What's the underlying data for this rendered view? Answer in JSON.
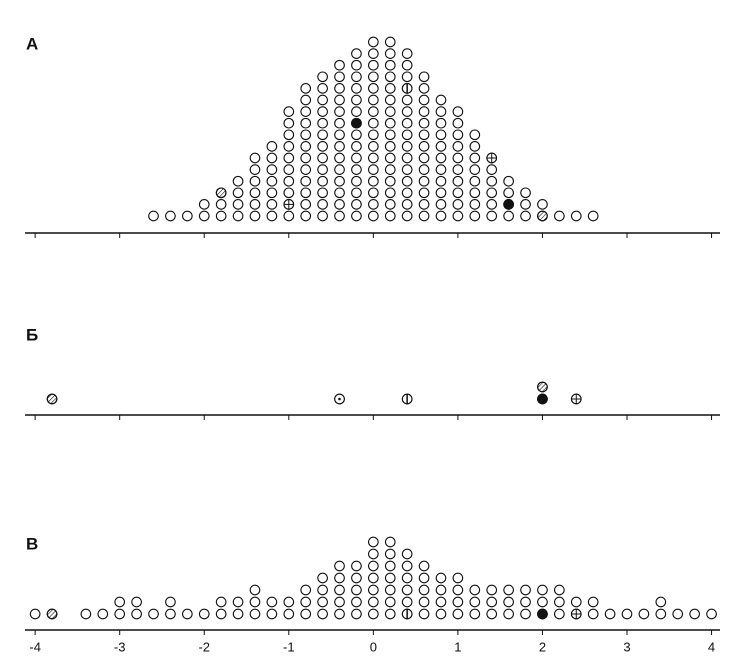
{
  "chart_data": {
    "type": "dotplot",
    "xlim": [
      -4.12,
      4.1
    ],
    "xticks": [
      -4,
      -3,
      -2,
      -1,
      0,
      1,
      2,
      3,
      4
    ],
    "panels": [
      {
        "label": "А",
        "x": [
          -2.6,
          -2.4,
          -2.2,
          -2.0,
          -1.8,
          -1.6,
          -1.4,
          -1.2,
          -1.0,
          -0.8,
          -0.6,
          -0.4,
          -0.2,
          0,
          0.2,
          0.4,
          0.6,
          0.8,
          1.0,
          1.2,
          1.4,
          1.6,
          1.8,
          2.0,
          2.2,
          2.4,
          2.6
        ],
        "counts": [
          1,
          1,
          1,
          2,
          3,
          4,
          6,
          7,
          10,
          12,
          13,
          14,
          15,
          16,
          16,
          15,
          13,
          11,
          10,
          8,
          6,
          4,
          3,
          2,
          1,
          1,
          1
        ],
        "marked": [
          {
            "x": -0.2,
            "level": 8,
            "marker": "filled"
          },
          {
            "x": 1.6,
            "level": 1,
            "marker": "filled"
          },
          {
            "x": 1.4,
            "level": 5,
            "marker": "crossed"
          },
          {
            "x": -1.0,
            "level": 1,
            "marker": "crossed"
          },
          {
            "x": -1.8,
            "level": 2,
            "marker": "hatched"
          },
          {
            "x": 2.0,
            "level": 0,
            "marker": "hatched"
          },
          {
            "x": 0.4,
            "level": 11,
            "marker": "vline"
          }
        ]
      },
      {
        "label": "Б",
        "x": [
          -3.8,
          -0.4,
          0.4,
          2.0,
          2.4
        ],
        "counts": [
          1,
          1,
          1,
          2,
          1
        ],
        "marked": [
          {
            "x": -3.8,
            "level": 0,
            "marker": "hatched"
          },
          {
            "x": -0.4,
            "level": 0,
            "marker": "dotted"
          },
          {
            "x": 0.4,
            "level": 0,
            "marker": "vline"
          },
          {
            "x": 2.0,
            "level": 0,
            "marker": "filled"
          },
          {
            "x": 2.0,
            "level": 1,
            "marker": "hatched"
          },
          {
            "x": 2.4,
            "level": 0,
            "marker": "crossed"
          }
        ]
      },
      {
        "label": "В",
        "x": [
          -4.0,
          -3.8,
          -3.4,
          -3.2,
          -3.0,
          -2.8,
          -2.6,
          -2.4,
          -2.2,
          -2.0,
          -1.8,
          -1.6,
          -1.4,
          -1.2,
          -1.0,
          -0.8,
          -0.6,
          -0.4,
          -0.2,
          0,
          0.2,
          0.4,
          0.6,
          0.8,
          1.0,
          1.2,
          1.4,
          1.6,
          1.8,
          2.0,
          2.2,
          2.4,
          2.6,
          2.8,
          3.0,
          3.2,
          3.4,
          3.6,
          3.8,
          4.0
        ],
        "counts": [
          1,
          1,
          1,
          1,
          2,
          2,
          1,
          2,
          1,
          1,
          2,
          2,
          3,
          2,
          2,
          3,
          4,
          5,
          5,
          7,
          7,
          6,
          5,
          4,
          4,
          3,
          3,
          3,
          3,
          3,
          3,
          2,
          2,
          1,
          1,
          1,
          2,
          1,
          1,
          1
        ],
        "marked": [
          {
            "x": -3.8,
            "level": 0,
            "marker": "hatched"
          },
          {
            "x": 0.4,
            "level": 0,
            "marker": "vline"
          },
          {
            "x": 2.0,
            "level": 0,
            "marker": "filled"
          },
          {
            "x": 2.4,
            "level": 0,
            "marker": "crossed"
          }
        ]
      }
    ]
  }
}
